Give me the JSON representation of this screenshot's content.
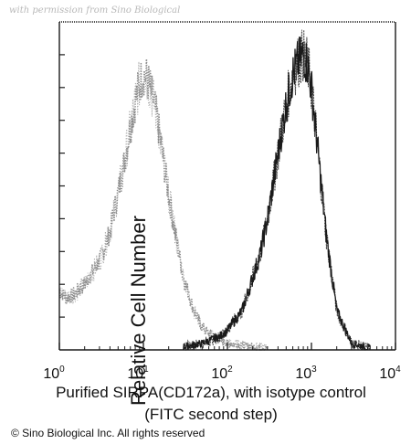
{
  "watermark": "with permission from Sino Biological",
  "copyright": "© Sino Biological Inc. All rights reserved",
  "colors": {
    "isotype": "#8a8a8a",
    "sample": "#1a1a1a",
    "axis": "#1a1a1a"
  },
  "chart_data": {
    "type": "area",
    "xlabel_line1": "Purified SIRPA(CD172a), with isotype control",
    "xlabel_line2": "(FITC second step)",
    "ylabel": "Relative Cell Number",
    "xscale": "log",
    "xlim": [
      1,
      10000
    ],
    "ylim": [
      0,
      100
    ],
    "y_ticks": [
      10,
      20,
      30,
      40,
      50,
      60,
      70,
      80,
      90
    ],
    "x_ticks": [
      {
        "value": 1,
        "base": "10",
        "exp": "0"
      },
      {
        "value": 10,
        "base": "10",
        "exp": "1"
      },
      {
        "value": 100,
        "base": "10",
        "exp": "2"
      },
      {
        "value": 1000,
        "base": "10",
        "exp": "3"
      },
      {
        "value": 10000,
        "base": "10",
        "exp": "4"
      }
    ],
    "grid": false,
    "legend": "none",
    "series": [
      {
        "key": "isotype",
        "style": "dotted",
        "x": [
          1,
          1.2,
          1.5,
          2,
          2.5,
          3,
          4,
          5,
          6,
          7,
          8,
          9,
          10,
          11,
          12,
          14,
          16,
          18,
          20,
          25,
          30,
          40,
          50,
          60,
          80,
          100,
          150,
          200,
          300
        ],
        "y": [
          18,
          16,
          17,
          20,
          24,
          27,
          36,
          48,
          58,
          68,
          76,
          81,
          84,
          83,
          80,
          73,
          64,
          55,
          47,
          33,
          22,
          12,
          7,
          5,
          3,
          2,
          1.5,
          1,
          0.5
        ]
      },
      {
        "key": "sample",
        "style": "solid",
        "x": [
          30,
          50,
          80,
          100,
          150,
          200,
          250,
          300,
          400,
          500,
          600,
          700,
          800,
          900,
          1000,
          1200,
          1500,
          2000,
          3000,
          5000
        ],
        "y": [
          1,
          2,
          4,
          6,
          12,
          22,
          30,
          40,
          60,
          75,
          84,
          88,
          90,
          87,
          80,
          60,
          35,
          12,
          2,
          0.5
        ]
      }
    ]
  }
}
